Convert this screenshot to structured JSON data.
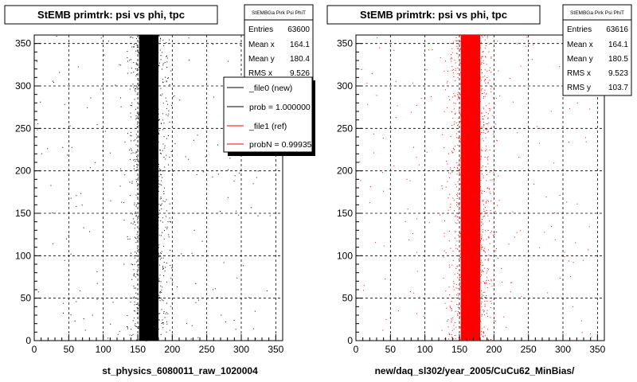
{
  "chart_data": [
    {
      "type": "scatter",
      "title": "StEMB primtrk: psi vs phi, tpc",
      "xlabel": "st_physics_6080011_raw_1020004",
      "ylabel": "",
      "xlim": [
        0,
        360
      ],
      "ylim": [
        0,
        360
      ],
      "xticks": [
        0,
        50,
        100,
        150,
        200,
        250,
        300,
        350
      ],
      "yticks": [
        0,
        50,
        100,
        150,
        200,
        250,
        300,
        350
      ],
      "grid": true,
      "marker_color": "#000000",
      "band": {
        "x_min": 152,
        "x_max": 180,
        "y_min": 0,
        "y_max": 360
      },
      "halo": {
        "x_min": 140,
        "x_max": 192
      },
      "stats": {
        "name": "StEMBGa Pirk Psi PhiT",
        "rows": [
          {
            "label": "Entries",
            "value": "63600"
          },
          {
            "label": "Mean x",
            "value": "164.1"
          },
          {
            "label": "Mean y",
            "value": "180.4"
          },
          {
            "label": "RMS x",
            "value": "9.526"
          }
        ]
      },
      "legend": {
        "placement": "top-right",
        "entries": [
          {
            "label": "_file0 (new)",
            "color": "#000000"
          },
          {
            "label": "prob = 1.000000",
            "color": "#000000"
          },
          {
            "label": "_file1 (ref)",
            "color": "#ff0000"
          },
          {
            "label": "probN = 0.99935",
            "color": "#ff0000"
          }
        ]
      }
    },
    {
      "type": "scatter",
      "title": "StEMB primtrk: psi vs phi, tpc",
      "xlabel": "new/daq_sl302/year_2005/CuCu62_MinBias/",
      "ylabel": "",
      "xlim": [
        0,
        360
      ],
      "ylim": [
        0,
        360
      ],
      "xticks": [
        0,
        50,
        100,
        150,
        200,
        250,
        300,
        350
      ],
      "yticks": [
        0,
        50,
        100,
        150,
        200,
        250,
        300,
        350
      ],
      "grid": true,
      "marker_color": "#ff0000",
      "band": {
        "x_min": 152,
        "x_max": 180,
        "y_min": 0,
        "y_max": 360
      },
      "halo": {
        "x_min": 135,
        "x_max": 195
      },
      "stats": {
        "name": "StEMBGa Pirk Psi PhiT",
        "rows": [
          {
            "label": "Entries",
            "value": "63616"
          },
          {
            "label": "Mean x",
            "value": "164.1"
          },
          {
            "label": "Mean y",
            "value": "180.5"
          },
          {
            "label": "RMS x",
            "value": "9.523"
          },
          {
            "label": "RMS y",
            "value": "103.7"
          }
        ]
      }
    }
  ]
}
